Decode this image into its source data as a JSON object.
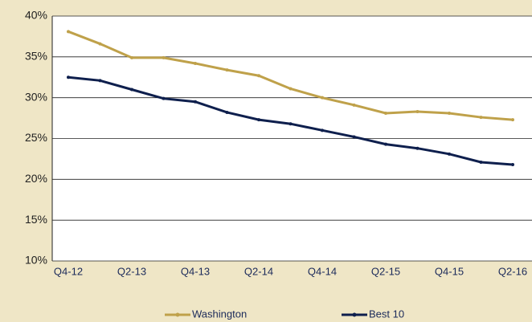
{
  "chart_data": {
    "type": "line",
    "categories": [
      "Q4-12",
      null,
      "Q2-13",
      null,
      "Q4-13",
      null,
      "Q2-14",
      null,
      "Q4-14",
      null,
      "Q2-15",
      null,
      "Q4-15",
      null,
      "Q2-16"
    ],
    "series": [
      {
        "name": "Washington",
        "color": "#bfa14a",
        "values": [
          38.1,
          36.6,
          34.9,
          34.9,
          34.2,
          33.4,
          32.7,
          31.1,
          30.0,
          29.1,
          28.1,
          28.3,
          28.1,
          27.6,
          27.3
        ]
      },
      {
        "name": "Best 10",
        "color": "#0e1f4d",
        "values": [
          32.5,
          32.1,
          31.0,
          29.9,
          29.5,
          28.2,
          27.3,
          26.8,
          26.0,
          25.2,
          24.3,
          23.8,
          23.1,
          22.1,
          21.8
        ]
      }
    ],
    "ylim": [
      10,
      40
    ],
    "yticks": [
      {
        "value": 10,
        "label": "10%"
      },
      {
        "value": 15,
        "label": "15%"
      },
      {
        "value": 20,
        "label": "20%"
      },
      {
        "value": 25,
        "label": "25%"
      },
      {
        "value": 30,
        "label": "30%"
      },
      {
        "value": 35,
        "label": "35%"
      },
      {
        "value": 40,
        "label": "40%"
      }
    ],
    "grid": true,
    "legend": "bottom"
  }
}
